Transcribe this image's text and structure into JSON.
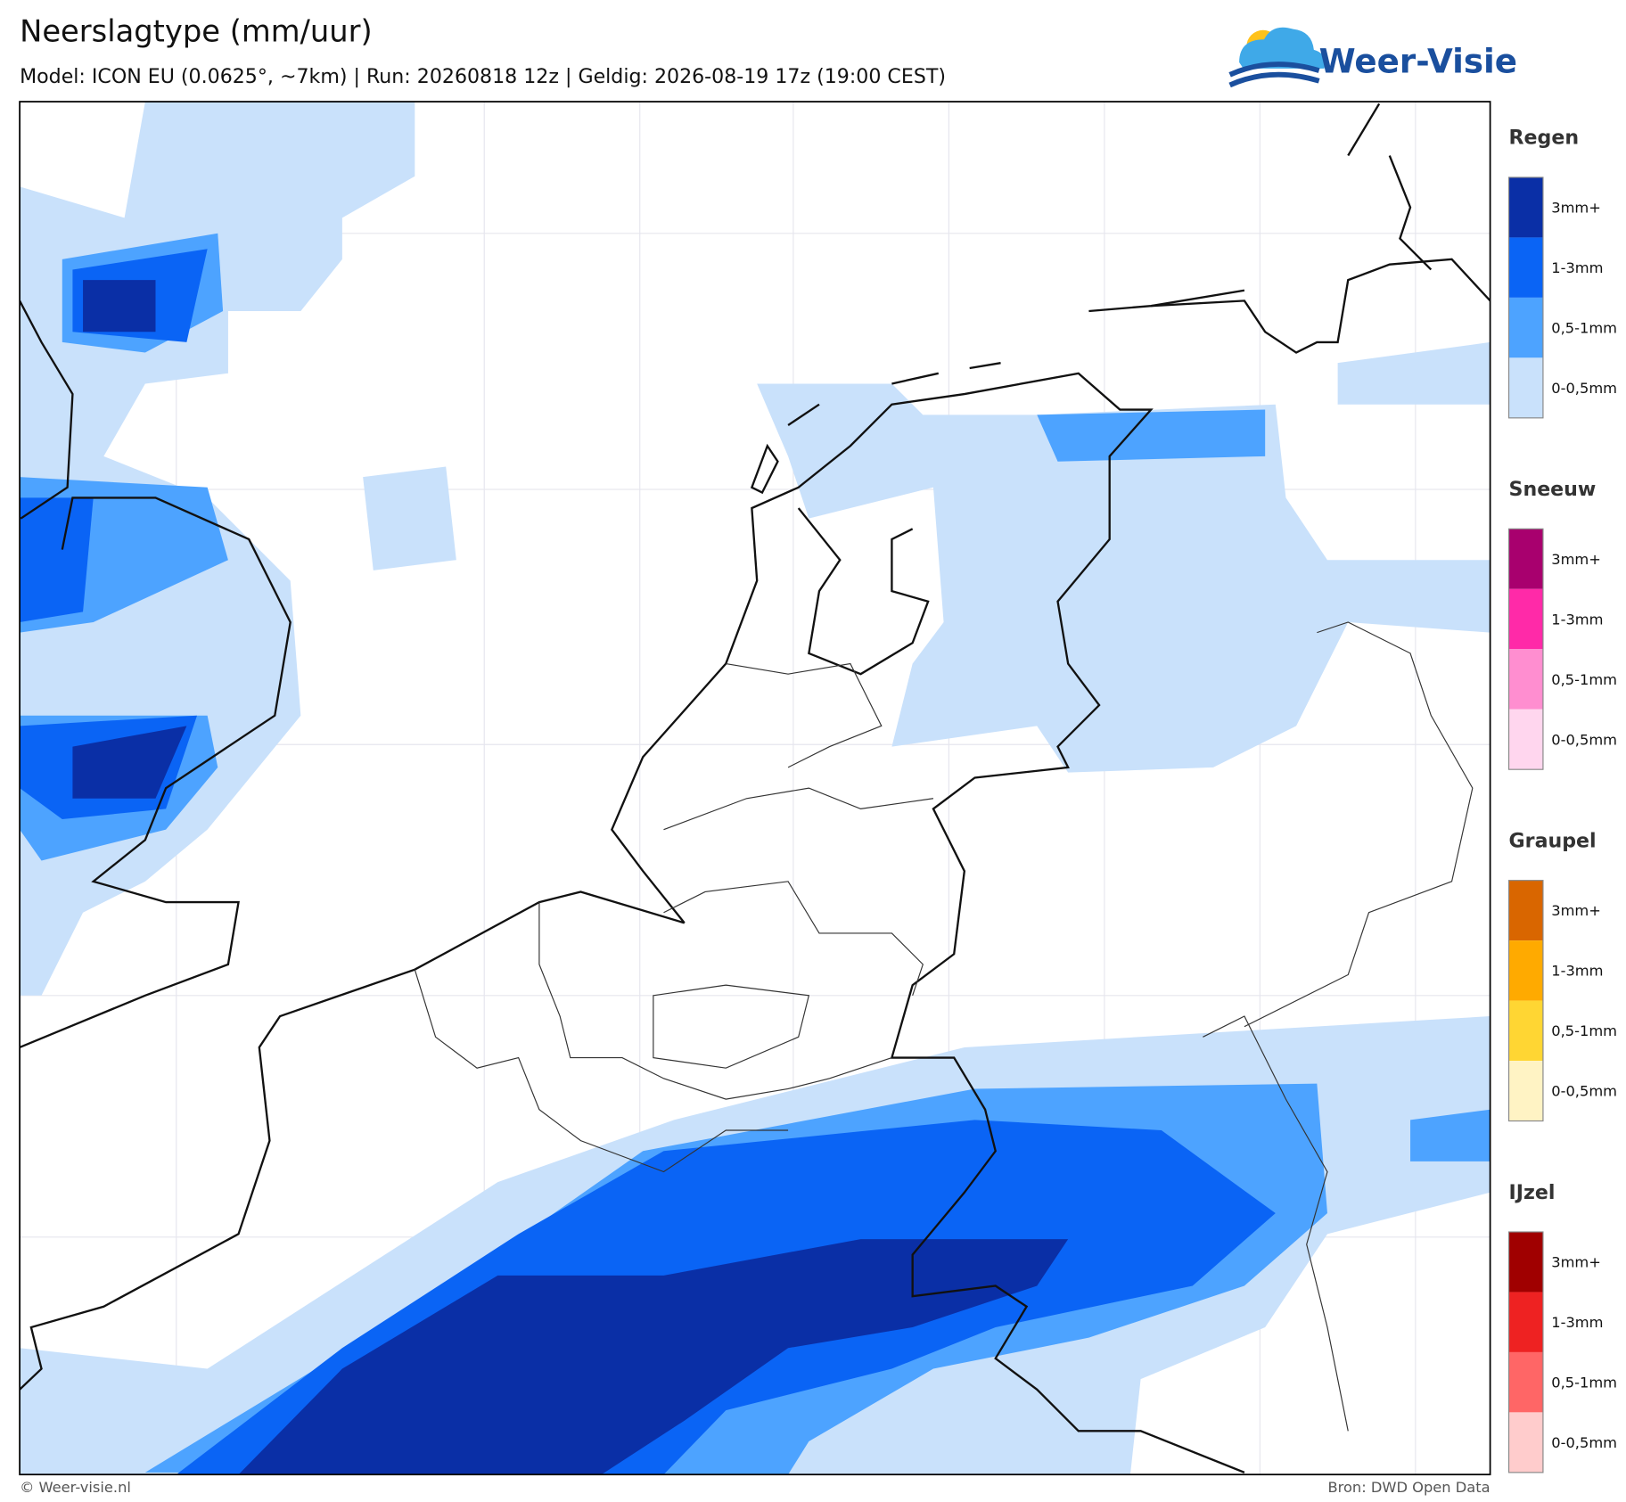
{
  "header": {
    "title": "Neerslagtype (mm/uur)",
    "subtitle": "Model: ICON EU (0.0625°, ~7km)  |  Run: 20260818 12z  |  Geldig: 2026-08-19 17z (19:00 CEST)",
    "logo": "Weer-Visie"
  },
  "legend": [
    {
      "title": "Regen",
      "items": [
        {
          "label": "3mm+",
          "color": "#0a2fa6"
        },
        {
          "label": "1-3mm",
          "color": "#0a64f5"
        },
        {
          "label": "0,5-1mm",
          "color": "#4da3ff"
        },
        {
          "label": "0-0,5mm",
          "color": "#c9e1fb"
        }
      ]
    },
    {
      "title": "Sneeuw",
      "items": [
        {
          "label": "3mm+",
          "color": "#a8006e"
        },
        {
          "label": "1-3mm",
          "color": "#ff2aa8"
        },
        {
          "label": "0,5-1mm",
          "color": "#ff8ed0"
        },
        {
          "label": "0-0,5mm",
          "color": "#ffd6ee"
        }
      ]
    },
    {
      "title": "Graupel",
      "items": [
        {
          "label": "3mm+",
          "color": "#d96600"
        },
        {
          "label": "1-3mm",
          "color": "#ffaa00"
        },
        {
          "label": "0,5-1mm",
          "color": "#ffd633"
        },
        {
          "label": "0-0,5mm",
          "color": "#fff3c4"
        }
      ]
    },
    {
      "title": "IJzel",
      "items": [
        {
          "label": "3mm+",
          "color": "#a00000"
        },
        {
          "label": "1-3mm",
          "color": "#ee2222"
        },
        {
          "label": "0,5-1mm",
          "color": "#ff6666"
        },
        {
          "label": "0-0,5mm",
          "color": "#ffcccc"
        }
      ]
    }
  ],
  "footer": {
    "left": "© Weer-visie.nl",
    "right": "Bron: DWD Open Data"
  }
}
